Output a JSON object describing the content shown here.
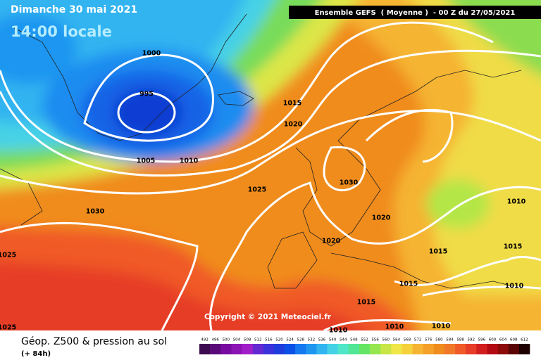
{
  "header": {
    "date": "Dimanche 30 mai 2021",
    "time": "14:00 locale",
    "model": "Ensemble GEFS  ( Moyenne )  - 00 Z du 27/05/2021"
  },
  "map": {
    "isobar_labels": [
      1000,
      995,
      1015,
      1020,
      1005,
      1010,
      1025,
      1030,
      1030,
      1020,
      1020,
      1010,
      1025,
      1015,
      1015,
      1015,
      1010,
      1015,
      1010,
      1010,
      1010,
      1025
    ],
    "copyright": "Copyright © 2021 Meteociel.fr"
  },
  "footer": {
    "title": "Géop. Z500 & pression au sol",
    "lead": "(+ 84h)"
  },
  "colorbar": {
    "values": [
      492,
      496,
      500,
      504,
      508,
      512,
      516,
      520,
      524,
      528,
      532,
      536,
      540,
      544,
      548,
      552,
      556,
      560,
      564,
      568,
      572,
      576,
      580,
      584,
      588,
      592,
      596,
      600,
      604,
      608,
      612
    ],
    "colors": [
      "#3c0a50",
      "#5a0a78",
      "#780aa0",
      "#8c14b4",
      "#a01ec8",
      "#6428d2",
      "#3c32dc",
      "#1e3cdc",
      "#0a50e6",
      "#1478f0",
      "#1e96f0",
      "#32b4f0",
      "#46d2e6",
      "#50e6c8",
      "#50e696",
      "#64e664",
      "#96e650",
      "#c8e646",
      "#f0e646",
      "#f5d23c",
      "#f5b432",
      "#f5a028",
      "#f08c1e",
      "#f07828",
      "#f05a28",
      "#e63c28",
      "#d21e1e",
      "#b40a14",
      "#8c0a0a",
      "#5a0505",
      "#1e0000"
    ]
  }
}
